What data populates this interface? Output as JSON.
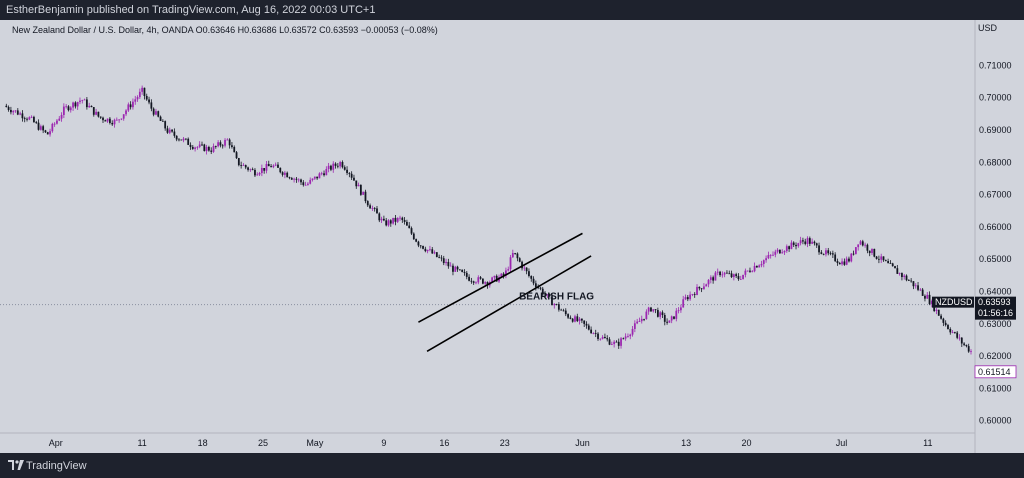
{
  "header": {
    "publisher_line": "EstherBenjamin published on TradingView.com, Aug 16, 2022 00:03 UTC+1"
  },
  "footer": {
    "brand": "TradingView"
  },
  "colors": {
    "background_dark": "#1e222d",
    "chart_bg": "#d1d4dc",
    "bull_candle": "#9c27b0",
    "bear_candle": "#131722",
    "price_line": "#8a8fa0",
    "last_price_tag": "#ffffff"
  },
  "chart_data": {
    "type": "candlestick",
    "info_line": "New Zealand Dollar / U.S. Dollar, 4h, OANDA  O0.63646  H0.63686  L0.63572  C0.63593  −0.00053 (−0.08%)",
    "currency": "USD",
    "ylim": [
      0.5965,
      0.7185
    ],
    "y_ticks": [
      {
        "value": 0.71,
        "label": "0.71000"
      },
      {
        "value": 0.7,
        "label": "0.70000"
      },
      {
        "value": 0.69,
        "label": "0.69000"
      },
      {
        "value": 0.68,
        "label": "0.68000"
      },
      {
        "value": 0.67,
        "label": "0.67000"
      },
      {
        "value": 0.66,
        "label": "0.66000"
      },
      {
        "value": 0.65,
        "label": "0.65000"
      },
      {
        "value": 0.64,
        "label": "0.64000"
      },
      {
        "value": 0.63,
        "label": "0.63000"
      },
      {
        "value": 0.62,
        "label": "0.62000"
      },
      {
        "value": 0.61,
        "label": "0.61000"
      },
      {
        "value": 0.6,
        "label": "0.60000"
      }
    ],
    "x_range": [
      "2022-03-26",
      "2022-07-16"
    ],
    "x_ticks": [
      {
        "date": "2022-04-01",
        "label": "Apr"
      },
      {
        "date": "2022-04-11",
        "label": "11"
      },
      {
        "date": "2022-04-18",
        "label": "18"
      },
      {
        "date": "2022-04-25",
        "label": "25"
      },
      {
        "date": "2022-05-01",
        "label": "May"
      },
      {
        "date": "2022-05-09",
        "label": "9"
      },
      {
        "date": "2022-05-16",
        "label": "16"
      },
      {
        "date": "2022-05-23",
        "label": "23"
      },
      {
        "date": "2022-06-01",
        "label": "Jun"
      },
      {
        "date": "2022-06-13",
        "label": "13"
      },
      {
        "date": "2022-06-20",
        "label": "20"
      },
      {
        "date": "2022-07-01",
        "label": "Jul"
      },
      {
        "date": "2022-07-11",
        "label": "11"
      }
    ],
    "price_path": [
      [
        "2022-03-26",
        0.6975
      ],
      [
        "2022-03-29",
        0.6935
      ],
      [
        "2022-03-31",
        0.6885
      ],
      [
        "2022-04-02",
        0.6965
      ],
      [
        "2022-04-04",
        0.6995
      ],
      [
        "2022-04-06",
        0.694
      ],
      [
        "2022-04-08",
        0.6925
      ],
      [
        "2022-04-10",
        0.699
      ],
      [
        "2022-04-11",
        0.702
      ],
      [
        "2022-04-12",
        0.697
      ],
      [
        "2022-04-14",
        0.6895
      ],
      [
        "2022-04-17",
        0.685
      ],
      [
        "2022-04-19",
        0.684
      ],
      [
        "2022-04-21",
        0.687
      ],
      [
        "2022-04-22",
        0.68
      ],
      [
        "2022-04-24",
        0.677
      ],
      [
        "2022-04-26",
        0.679
      ],
      [
        "2022-04-28",
        0.676
      ],
      [
        "2022-04-30",
        0.673
      ],
      [
        "2022-05-02",
        0.677
      ],
      [
        "2022-05-04",
        0.68
      ],
      [
        "2022-05-05",
        0.677
      ],
      [
        "2022-05-07",
        0.668
      ],
      [
        "2022-05-09",
        0.661
      ],
      [
        "2022-05-11",
        0.6625
      ],
      [
        "2022-05-13",
        0.655
      ],
      [
        "2022-05-15",
        0.651
      ],
      [
        "2022-05-17",
        0.647
      ],
      [
        "2022-05-19",
        0.644
      ],
      [
        "2022-05-21",
        0.643
      ],
      [
        "2022-05-23",
        0.645
      ],
      [
        "2022-05-24",
        0.652
      ],
      [
        "2022-05-26",
        0.644
      ],
      [
        "2022-05-28",
        0.638
      ],
      [
        "2022-05-30",
        0.633
      ],
      [
        "2022-06-01",
        0.63
      ],
      [
        "2022-06-03",
        0.626
      ],
      [
        "2022-06-05",
        0.6235
      ],
      [
        "2022-06-07",
        0.629
      ],
      [
        "2022-06-09",
        0.635
      ],
      [
        "2022-06-11",
        0.63
      ],
      [
        "2022-06-13",
        0.638
      ],
      [
        "2022-06-15",
        0.642
      ],
      [
        "2022-06-17",
        0.646
      ],
      [
        "2022-06-19",
        0.644
      ],
      [
        "2022-06-21",
        0.648
      ],
      [
        "2022-06-24",
        0.653
      ],
      [
        "2022-06-27",
        0.656
      ],
      [
        "2022-06-29",
        0.652
      ],
      [
        "2022-07-01",
        0.649
      ],
      [
        "2022-07-02",
        0.65
      ],
      [
        "2022-07-03",
        0.656
      ],
      [
        "2022-07-05",
        0.651
      ],
      [
        "2022-07-07",
        0.647
      ],
      [
        "2022-07-09",
        0.643
      ],
      [
        "2022-07-11",
        0.638
      ],
      [
        "2022-07-13",
        0.63
      ],
      [
        "2022-07-15",
        0.624
      ],
      [
        "2022-07-16",
        0.6215
      ]
    ],
    "price_path_note_unused": "",
    "annotations": [
      {
        "text": "BEARISH FLAG",
        "date": "2022-05-29",
        "value": 0.6375
      }
    ],
    "flag_channel": {
      "upper": [
        [
          "2022-05-13",
          0.6305
        ],
        [
          "2022-06-01",
          0.658
        ]
      ],
      "lower": [
        [
          "2022-05-14",
          0.6215
        ],
        [
          "2022-06-02",
          0.651
        ]
      ]
    },
    "last_price": {
      "symbol": "NZDUSD",
      "value": 0.63593,
      "label": "0.63593",
      "countdown": "01:56:16"
    },
    "current_price": {
      "value": 0.61514,
      "label": "0.61514"
    }
  }
}
